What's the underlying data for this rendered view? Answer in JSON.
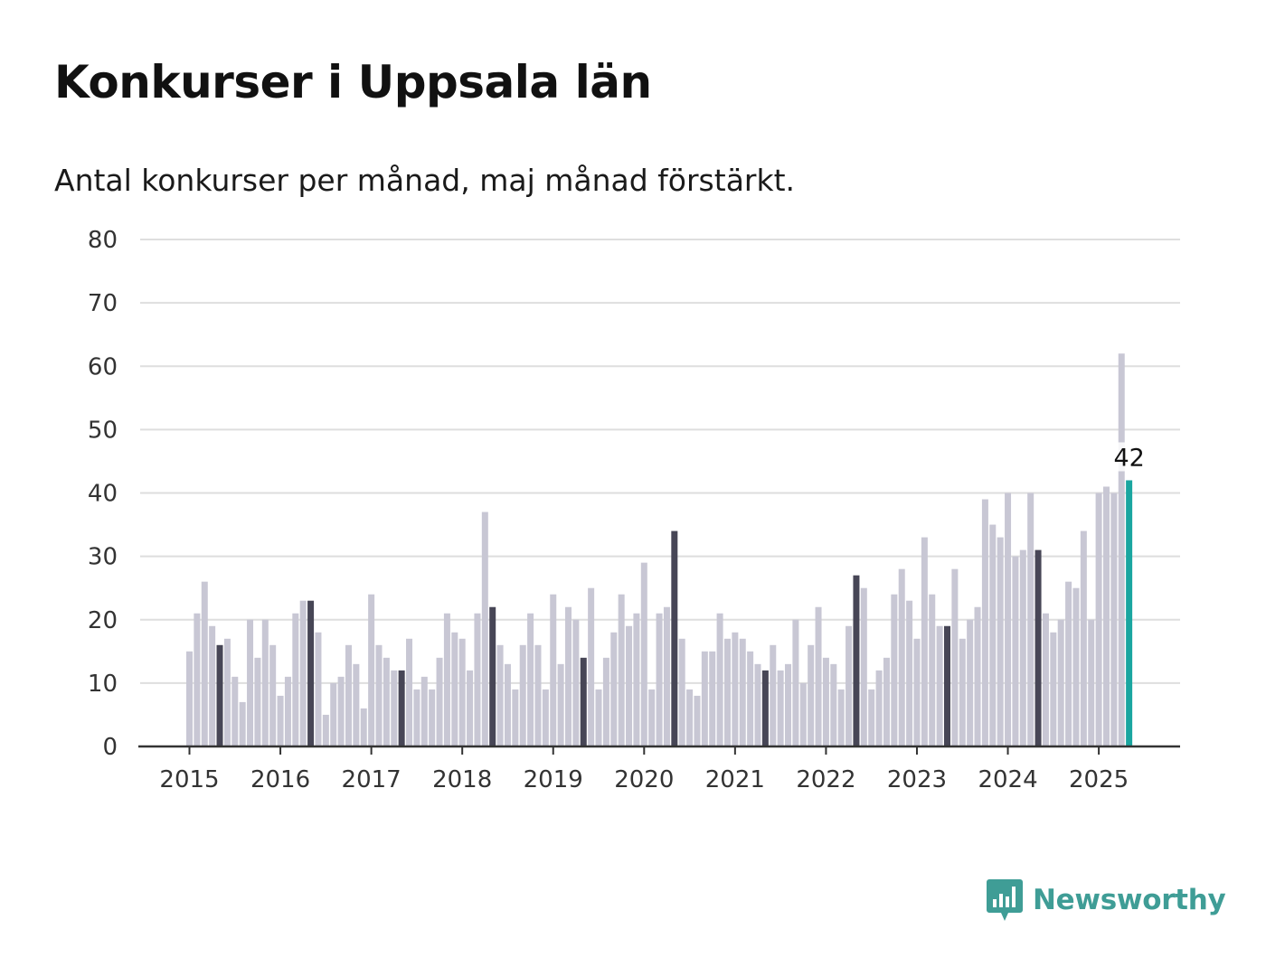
{
  "title": "Konkurser i Uppsala län",
  "subtitle": "Antal konkurser per månad, maj månad förstärkt.",
  "brand": {
    "name": "Newsworthy",
    "icon": "bar-chart-speech-bubble-icon"
  },
  "colors": {
    "bar": "#c8c7d4",
    "highlight": "#474656",
    "latest": "#1aa6a0",
    "grid": "#dedede",
    "axis": "#333333",
    "brand": "#3f9d96"
  },
  "chart_data": {
    "type": "bar",
    "title": "Konkurser i Uppsala län",
    "subtitle": "Antal konkurser per månad, maj månad förstärkt.",
    "xlabel": "",
    "ylabel": "",
    "ylim": [
      0,
      80
    ],
    "yticks": [
      0,
      10,
      20,
      30,
      40,
      50,
      60,
      70,
      80
    ],
    "xticks": [
      "2015",
      "2016",
      "2017",
      "2018",
      "2019",
      "2020",
      "2021",
      "2022",
      "2023",
      "2024",
      "2025"
    ],
    "grid": true,
    "legend": "none",
    "start_month": "2015-01",
    "highlight_month": "May",
    "values": [
      15,
      21,
      26,
      19,
      16,
      17,
      11,
      7,
      20,
      14,
      20,
      16,
      8,
      11,
      21,
      23,
      23,
      18,
      5,
      10,
      11,
      16,
      13,
      6,
      24,
      16,
      14,
      12,
      12,
      17,
      9,
      11,
      9,
      14,
      21,
      18,
      17,
      12,
      21,
      37,
      22,
      16,
      13,
      9,
      16,
      21,
      16,
      9,
      24,
      13,
      22,
      20,
      14,
      25,
      9,
      14,
      18,
      24,
      19,
      21,
      29,
      9,
      21,
      22,
      34,
      17,
      9,
      8,
      15,
      15,
      21,
      17,
      18,
      17,
      15,
      13,
      12,
      16,
      12,
      13,
      20,
      10,
      16,
      22,
      14,
      13,
      9,
      19,
      27,
      25,
      9,
      12,
      14,
      24,
      28,
      23,
      17,
      33,
      24,
      19,
      19,
      28,
      17,
      20,
      22,
      39,
      35,
      33,
      40,
      30,
      31,
      40,
      31,
      21,
      18,
      20,
      26,
      25,
      34,
      20,
      40,
      41,
      40,
      62,
      42
    ],
    "annotations": [
      {
        "label": "42",
        "month": "2025-05"
      }
    ]
  }
}
